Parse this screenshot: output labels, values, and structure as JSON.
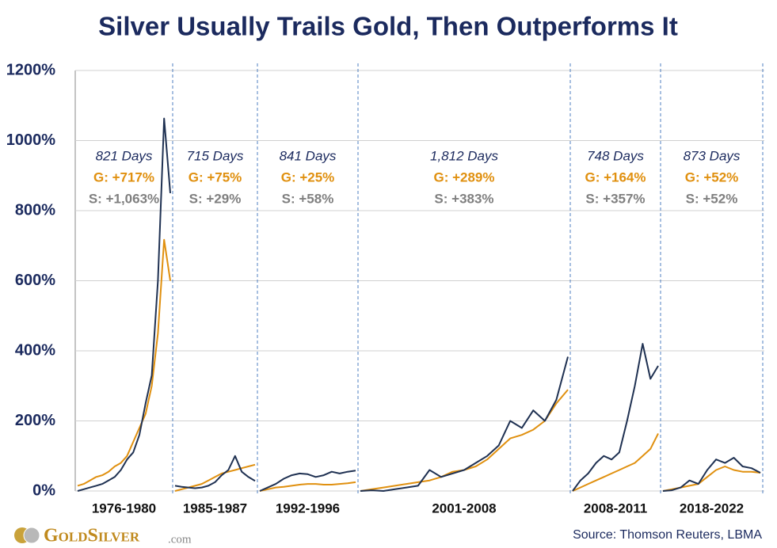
{
  "chart_data": {
    "type": "line",
    "title": "Silver Usually Trails Gold, Then Outperforms It",
    "ylim": [
      0,
      1200
    ],
    "yticks": [
      {
        "value": 0,
        "label": "0%"
      },
      {
        "value": 200,
        "label": "200%"
      },
      {
        "value": 400,
        "label": "400%"
      },
      {
        "value": 600,
        "label": "600%"
      },
      {
        "value": 800,
        "label": "800%"
      },
      {
        "value": 1000,
        "label": "1000%"
      },
      {
        "value": 1200,
        "label": "1200%"
      }
    ],
    "grid": true,
    "periods": [
      {
        "label": "1976-1980",
        "days": "821 Days",
        "gold_label": "G: +717%",
        "silver_label": "S: +1,063%",
        "series": [
          {
            "color": "#e0900f",
            "values": [
              15,
              20,
              30,
              40,
              45,
              55,
              70,
              80,
              100,
              140,
              180,
              220,
              300,
              450,
              717,
              600
            ]
          },
          {
            "color": "#1f3152",
            "values": [
              0,
              5,
              10,
              15,
              20,
              30,
              40,
              60,
              90,
              110,
              160,
              250,
              330,
              600,
              1063,
              850
            ]
          }
        ]
      },
      {
        "label": "1985-1987",
        "days": "715 Days",
        "gold_label": "G: +75%",
        "silver_label": "S: +29%",
        "series": [
          {
            "color": "#e0900f",
            "values": [
              0,
              5,
              10,
              15,
              20,
              30,
              40,
              50,
              55,
              60,
              65,
              70,
              75
            ]
          },
          {
            "color": "#1f3152",
            "values": [
              15,
              12,
              10,
              8,
              10,
              15,
              25,
              45,
              60,
              100,
              55,
              40,
              29
            ]
          }
        ]
      },
      {
        "label": "1992-1996",
        "days": "841 Days",
        "gold_label": "G: +25%",
        "silver_label": "S: +58%",
        "series": [
          {
            "color": "#e0900f",
            "values": [
              0,
              5,
              10,
              12,
              15,
              18,
              20,
              20,
              18,
              18,
              20,
              22,
              25
            ]
          },
          {
            "color": "#1f3152",
            "values": [
              0,
              10,
              20,
              35,
              45,
              50,
              48,
              40,
              45,
              55,
              50,
              55,
              58
            ]
          }
        ]
      },
      {
        "label": "2001-2008",
        "days": "1,812 Days",
        "gold_label": "G: +289%",
        "silver_label": "S: +383%",
        "series": [
          {
            "color": "#e0900f",
            "values": [
              0,
              5,
              10,
              15,
              20,
              25,
              30,
              40,
              55,
              60,
              70,
              90,
              120,
              150,
              160,
              175,
              200,
              250,
              289
            ]
          },
          {
            "color": "#1f3152",
            "values": [
              0,
              2,
              0,
              5,
              10,
              15,
              60,
              40,
              50,
              60,
              80,
              100,
              130,
              200,
              180,
              230,
              200,
              260,
              383
            ]
          }
        ]
      },
      {
        "label": "2008-2011",
        "days": "748 Days",
        "gold_label": "G: +164%",
        "silver_label": "S: +357%",
        "series": [
          {
            "color": "#e0900f",
            "values": [
              0,
              10,
              20,
              30,
              40,
              50,
              60,
              70,
              80,
              100,
              120,
              164
            ]
          },
          {
            "color": "#1f3152",
            "values": [
              0,
              30,
              50,
              80,
              100,
              90,
              110,
              200,
              300,
              420,
              320,
              357
            ]
          }
        ]
      },
      {
        "label": "2018-2022",
        "days": "873 Days",
        "gold_label": "G: +52%",
        "silver_label": "S: +52%",
        "series": [
          {
            "color": "#e0900f",
            "values": [
              0,
              5,
              10,
              15,
              20,
              40,
              60,
              70,
              60,
              55,
              55,
              52
            ]
          },
          {
            "color": "#1f3152",
            "values": [
              0,
              2,
              10,
              30,
              20,
              60,
              90,
              80,
              95,
              70,
              65,
              52
            ]
          }
        ]
      }
    ],
    "source": "Source: Thomson Reuters, LBMA",
    "brand": "GoldSilver",
    "brand_suffix": ".com"
  }
}
